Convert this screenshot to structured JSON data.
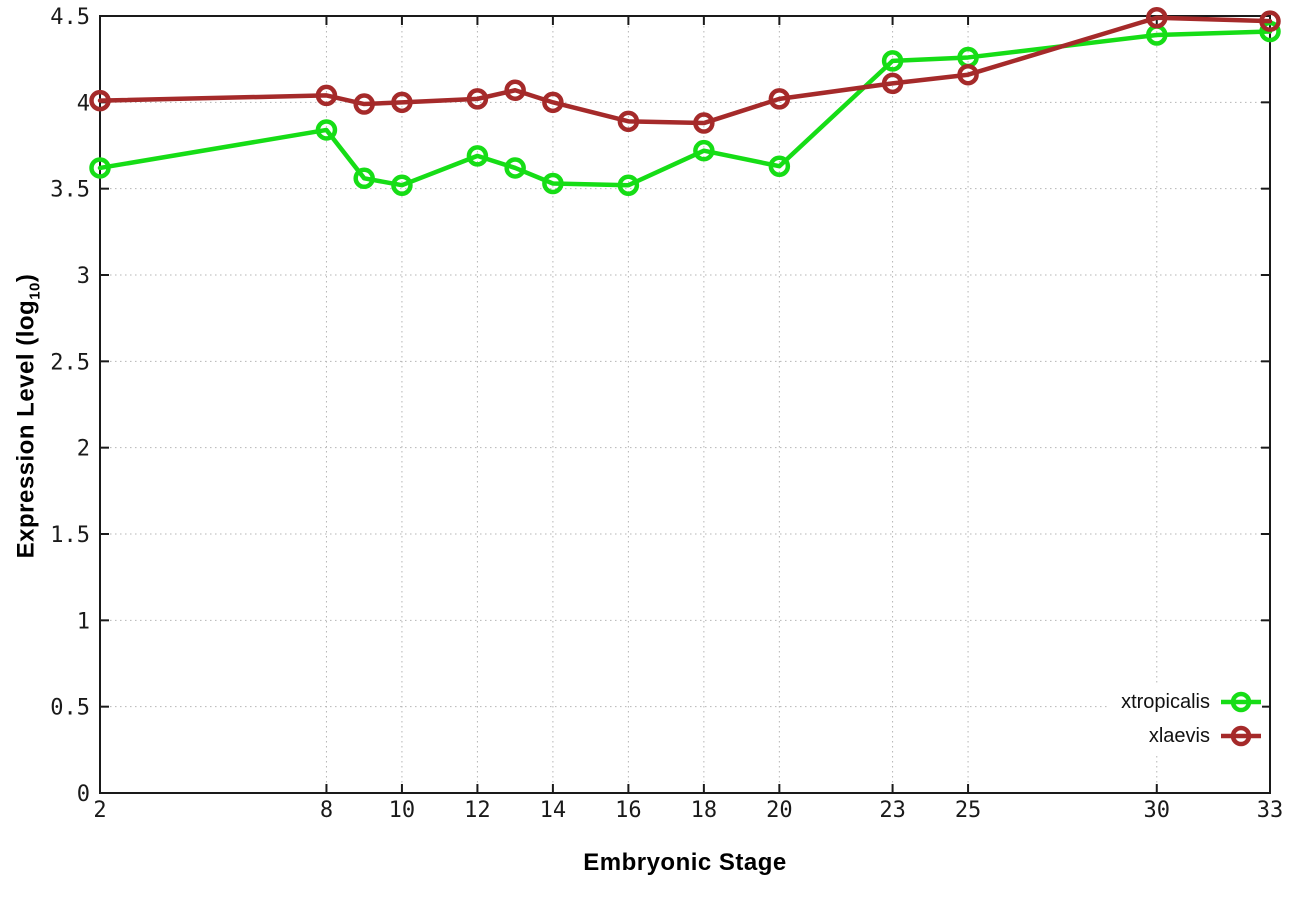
{
  "figure": {
    "background": "#ffffff",
    "border_color": "#1a1a1a",
    "grid_color": "#b5b5b5",
    "tick_label_color": "#1a1a1a"
  },
  "chart_data": {
    "type": "line",
    "title": "",
    "xlabel": "Embryonic Stage",
    "ylabel": "Expression Level (log10)",
    "ylabel_parts": {
      "main": "Expression Level (log",
      "sub": "10",
      "end": ")"
    },
    "x": [
      2,
      8,
      9,
      10,
      12,
      13,
      14,
      16,
      18,
      20,
      23,
      25,
      30,
      33
    ],
    "series": [
      {
        "name": "xtropicalis",
        "color": "#16dd16",
        "values": [
          3.62,
          3.84,
          3.56,
          3.52,
          3.69,
          3.62,
          3.53,
          3.52,
          3.72,
          3.63,
          4.24,
          4.26,
          4.39,
          4.41
        ]
      },
      {
        "name": "xlaevis",
        "color": "#a52a2a",
        "values": [
          4.01,
          4.04,
          3.99,
          4.0,
          4.02,
          4.07,
          4.0,
          3.89,
          3.88,
          4.02,
          4.11,
          4.16,
          4.49,
          4.47
        ]
      }
    ],
    "xlim": [
      2,
      33
    ],
    "ylim": [
      0,
      4.5
    ],
    "xticks": [
      2,
      8,
      10,
      12,
      14,
      16,
      18,
      20,
      23,
      25,
      30,
      33
    ],
    "xtick_labels": [
      "2",
      "8",
      "10",
      "12",
      "14",
      "16",
      "18",
      "20",
      "23",
      "25",
      "30",
      "33"
    ],
    "yticks": [
      0,
      0.5,
      1,
      1.5,
      2,
      2.5,
      3,
      3.5,
      4,
      4.5
    ],
    "ytick_labels": [
      "0",
      "0.5",
      "1",
      "1.5",
      "2",
      "2.5",
      "3",
      "3.5",
      "4",
      "4.5"
    ],
    "grid": true,
    "grid_style": "dotted",
    "legend_position": "bottom-right",
    "marker": "open-circle"
  }
}
